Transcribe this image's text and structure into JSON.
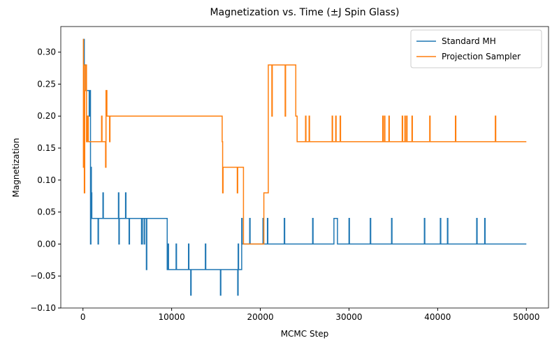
{
  "chart_data": {
    "type": "line",
    "title": "Magnetization vs. Time (±J Spin Glass)",
    "x_label": "MCMC Step",
    "y_label": "Magnetization",
    "xlim": [
      -2500,
      52500
    ],
    "ylim": [
      -0.1,
      0.34
    ],
    "xticks": [
      0,
      10000,
      20000,
      30000,
      40000,
      50000
    ],
    "yticks": [
      {
        "value": -0.1,
        "label": "−0.10"
      },
      {
        "value": -0.05,
        "label": "−0.05"
      },
      {
        "value": 0,
        "label": "0.00"
      },
      {
        "value": 0.05,
        "label": "0.05"
      },
      {
        "value": 0.1,
        "label": "0.10"
      },
      {
        "value": 0.15,
        "label": "0.15"
      },
      {
        "value": 0.2,
        "label": "0.20"
      },
      {
        "value": 0.25,
        "label": "0.25"
      },
      {
        "value": 0.3,
        "label": "0.30"
      }
    ],
    "grid": false,
    "legend": "upper right",
    "series": [
      {
        "name": "Standard MH",
        "color": "#1f77b4",
        "x": [
          0,
          150,
          150,
          300,
          300,
          700,
          700,
          750,
          750,
          850,
          850,
          900,
          900,
          950,
          950,
          1000,
          1000,
          1700,
          1700,
          1750,
          1750,
          2250,
          2250,
          2300,
          2300,
          4000,
          4000,
          4050,
          4050,
          4100,
          4100,
          4800,
          4800,
          4850,
          4850,
          5200,
          5200,
          5250,
          5250,
          6600,
          6600,
          6700,
          6700,
          6900,
          6900,
          6950,
          6950,
          7150,
          7150,
          7200,
          7200,
          9500,
          9500,
          9600,
          9600,
          9650,
          9650,
          10500,
          10500,
          10550,
          10550,
          11900,
          11900,
          11950,
          11950,
          12150,
          12150,
          12200,
          12200,
          13800,
          13800,
          13850,
          13850,
          15500,
          15500,
          15550,
          15550,
          17450,
          17450,
          17500,
          17500,
          17550,
          17550,
          17900,
          17900,
          17950,
          17950,
          18800,
          18800,
          18850,
          18850,
          20300,
          20300,
          20350,
          20350,
          20800,
          20800,
          20850,
          20850,
          22700,
          22700,
          22750,
          22750,
          25900,
          25900,
          25950,
          25950,
          28300,
          28300,
          28700,
          28700,
          30000,
          30000,
          30050,
          30050,
          32400,
          32400,
          32450,
          32450,
          34800,
          34800,
          34850,
          34850,
          38500,
          38500,
          38550,
          38550,
          40300,
          40300,
          40350,
          40350,
          41100,
          41100,
          41150,
          41150,
          44400,
          44400,
          44450,
          44450,
          45300,
          45300,
          45350,
          45350,
          50000
        ],
        "values": [
          0.32,
          0.32,
          0.28,
          0.28,
          0.24,
          0.24,
          0.2,
          0.2,
          0.24,
          0.24,
          0,
          0,
          0.12,
          0.12,
          0.08,
          0.08,
          0.04,
          0.04,
          0,
          0,
          0.04,
          0.04,
          0.08,
          0.08,
          0.04,
          0.04,
          0.08,
          0.08,
          0,
          0,
          0.04,
          0.04,
          0.08,
          0.08,
          0.04,
          0.04,
          0,
          0,
          0.04,
          0.04,
          0,
          0,
          0.04,
          0.04,
          0,
          0,
          0.04,
          0.04,
          -0.04,
          -0.04,
          0.04,
          0.04,
          -0.04,
          -0.04,
          0,
          0,
          -0.04,
          -0.04,
          0,
          0,
          -0.04,
          -0.04,
          0,
          0,
          -0.04,
          -0.04,
          -0.08,
          -0.08,
          -0.04,
          -0.04,
          0,
          0,
          -0.04,
          -0.04,
          -0.08,
          -0.08,
          -0.04,
          -0.04,
          -0.08,
          -0.08,
          0,
          0,
          -0.04,
          -0.04,
          0.04,
          0.04,
          0,
          0,
          0.04,
          0.04,
          0,
          0,
          0.04,
          0.04,
          0,
          0,
          0.04,
          0.04,
          0,
          0,
          0.04,
          0.04,
          0,
          0,
          0.04,
          0.04,
          0,
          0,
          0.04,
          0.04,
          0,
          0,
          0.04,
          0.04,
          0,
          0,
          0.04,
          0.04,
          0,
          0,
          0.04,
          0.04,
          0,
          0,
          0.04,
          0.04,
          0,
          0,
          0.04,
          0.04,
          0,
          0,
          0.04,
          0.04,
          0,
          0,
          0.04,
          0.04,
          0,
          0,
          0.04,
          0.04,
          0,
          0
        ]
      },
      {
        "name": "Projection Sampler",
        "color": "#ff7f0e",
        "x": [
          0,
          50,
          50,
          100,
          100,
          150,
          150,
          200,
          200,
          300,
          300,
          400,
          400,
          500,
          500,
          600,
          600,
          2100,
          2100,
          2150,
          2150,
          2550,
          2550,
          2600,
          2600,
          2700,
          2700,
          3000,
          3000,
          3050,
          3050,
          15700,
          15700,
          15750,
          15750,
          15800,
          15800,
          17400,
          17400,
          17450,
          17450,
          18100,
          18100,
          20400,
          20400,
          20900,
          20900,
          21300,
          21300,
          21350,
          21350,
          22800,
          22800,
          22850,
          22850,
          24000,
          24000,
          24150,
          24150,
          25100,
          25100,
          25150,
          25150,
          25500,
          25500,
          25550,
          25550,
          28100,
          28100,
          28150,
          28150,
          28500,
          28500,
          28550,
          28550,
          29000,
          29000,
          29050,
          29050,
          33800,
          33800,
          33850,
          33850,
          34000,
          34000,
          34050,
          34050,
          34500,
          34500,
          34550,
          34550,
          36000,
          36000,
          36050,
          36050,
          36300,
          36300,
          36350,
          36350,
          36500,
          36500,
          36550,
          36550,
          37100,
          37100,
          37150,
          37150,
          39100,
          39100,
          39150,
          39150,
          42000,
          42000,
          42050,
          42050,
          46500,
          46500,
          46550,
          46550,
          50000
        ],
        "values": [
          0.32,
          0.32,
          0.12,
          0.12,
          0.28,
          0.28,
          0.08,
          0.08,
          0.24,
          0.24,
          0.28,
          0.28,
          0.16,
          0.16,
          0.2,
          0.2,
          0.16,
          0.16,
          0.2,
          0.2,
          0.16,
          0.16,
          0.12,
          0.12,
          0.24,
          0.24,
          0.2,
          0.2,
          0.16,
          0.16,
          0.2,
          0.2,
          0.16,
          0.16,
          0.08,
          0.08,
          0.12,
          0.12,
          0.08,
          0.08,
          0.12,
          0.12,
          0,
          0,
          0.08,
          0.08,
          0.28,
          0.28,
          0.2,
          0.2,
          0.28,
          0.28,
          0.2,
          0.2,
          0.28,
          0.28,
          0.2,
          0.2,
          0.16,
          0.16,
          0.2,
          0.2,
          0.16,
          0.16,
          0.2,
          0.2,
          0.16,
          0.16,
          0.2,
          0.2,
          0.16,
          0.16,
          0.2,
          0.2,
          0.16,
          0.16,
          0.2,
          0.2,
          0.16,
          0.16,
          0.2,
          0.2,
          0.16,
          0.16,
          0.2,
          0.2,
          0.16,
          0.16,
          0.2,
          0.2,
          0.16,
          0.16,
          0.2,
          0.2,
          0.16,
          0.16,
          0.2,
          0.2,
          0.16,
          0.16,
          0.2,
          0.2,
          0.16,
          0.16,
          0.2,
          0.2,
          0.16,
          0.16,
          0.2,
          0.2,
          0.16,
          0.16,
          0.2,
          0.2,
          0.16,
          0.16,
          0.2,
          0.2,
          0.16,
          0.16
        ]
      }
    ]
  }
}
